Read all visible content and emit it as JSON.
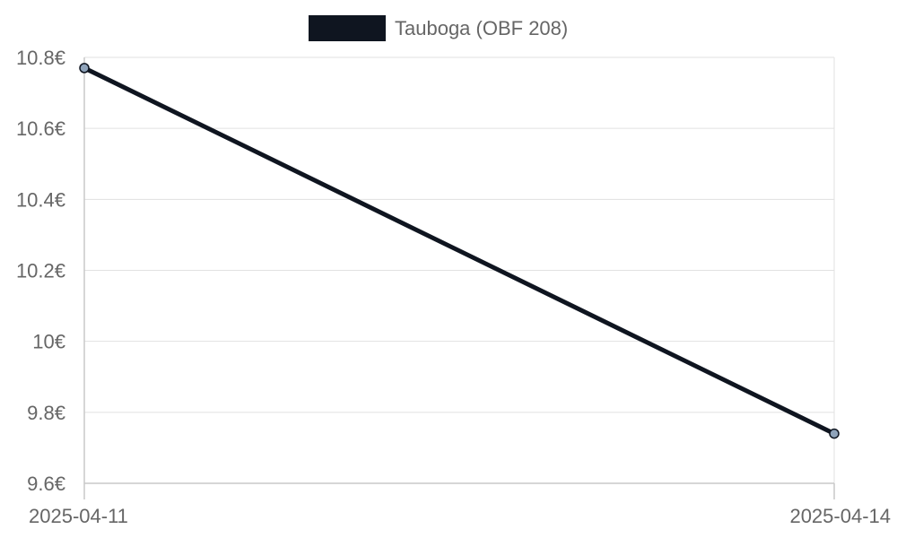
{
  "colors": {
    "line": "#0f1520",
    "point_fill": "#8fa3ba",
    "grid": "#e1e1e1",
    "axis": "#c8c8c8",
    "text": "#666666"
  },
  "chart_data": {
    "type": "line",
    "x": [
      "2025-04-11",
      "2025-04-14"
    ],
    "series": [
      {
        "name": "Tauboga (OBF 208)",
        "values": [
          10.77,
          9.74
        ]
      }
    ],
    "ylim": [
      9.6,
      10.8
    ],
    "yticks": [
      9.6,
      9.8,
      10,
      10.2,
      10.4,
      10.6,
      10.8
    ],
    "ytick_labels": [
      "9.6€",
      "9.8€",
      "10€",
      "10.2€",
      "10.4€",
      "10.6€",
      "10.8€"
    ],
    "xtick_labels": [
      "2025-04-11",
      "2025-04-14"
    ],
    "grid": true,
    "legend": "top-center"
  }
}
